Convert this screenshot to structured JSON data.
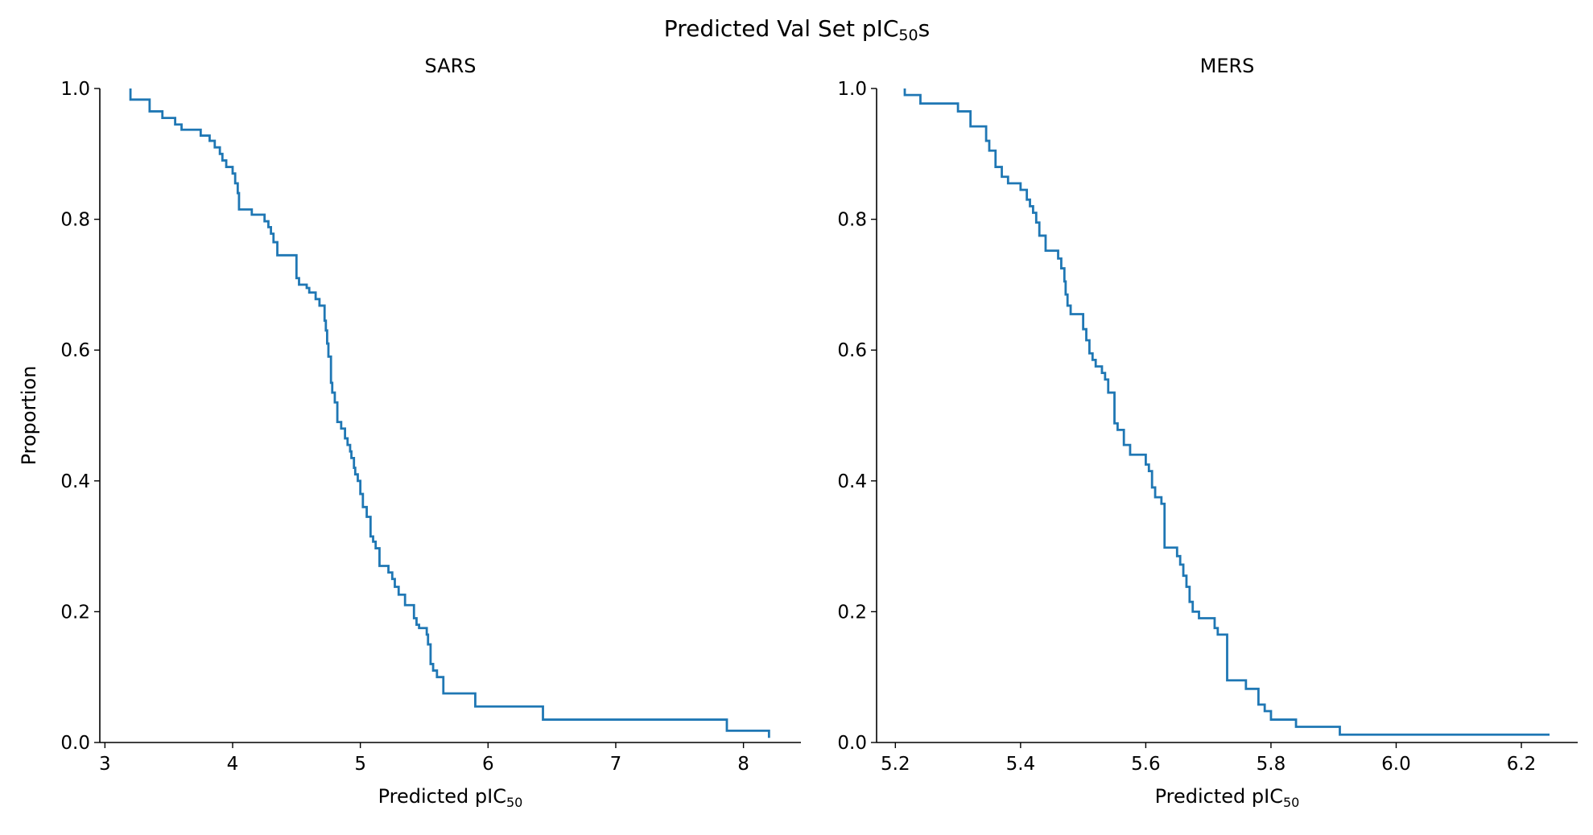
{
  "figure": {
    "suptitle_main": "Predicted Val Set pIC",
    "suptitle_sub": "50",
    "suptitle_tail": "s"
  },
  "chart_data": [
    {
      "type": "line",
      "subtype": "step",
      "title": "SARS",
      "xlabel_main": "Predicted pIC",
      "xlabel_sub": "50",
      "ylabel": "Proportion",
      "xlim": [
        2.96,
        8.45
      ],
      "ylim": [
        0,
        1.0
      ],
      "xticks": [
        3,
        4,
        5,
        6,
        7,
        8
      ],
      "xtick_labels": [
        "3",
        "4",
        "5",
        "6",
        "7",
        "8"
      ],
      "yticks": [
        0.0,
        0.2,
        0.4,
        0.6,
        0.8,
        1.0
      ],
      "ytick_labels": [
        "0.0",
        "0.2",
        "0.4",
        "0.6",
        "0.8",
        "1.0"
      ],
      "color": "#1f77b4",
      "grid": false,
      "series": [
        {
          "x": [
            3.2,
            3.2,
            3.35,
            3.45,
            3.55,
            3.6,
            3.75,
            3.82,
            3.86,
            3.9,
            3.92,
            3.95,
            4.0,
            4.02,
            4.04,
            4.05,
            4.15,
            4.25,
            4.28,
            4.3,
            4.32,
            4.35,
            4.5,
            4.52,
            4.58,
            4.6,
            4.65,
            4.68,
            4.72,
            4.73,
            4.74,
            4.75,
            4.77,
            4.78,
            4.8,
            4.82,
            4.85,
            4.88,
            4.9,
            4.92,
            4.93,
            4.95,
            4.96,
            4.98,
            5.0,
            5.02,
            5.05,
            5.08,
            5.1,
            5.12,
            5.15,
            5.22,
            5.25,
            5.27,
            5.3,
            5.35,
            5.42,
            5.44,
            5.46,
            5.52,
            5.53,
            5.55,
            5.57,
            5.6,
            5.65,
            5.9,
            6.43,
            7.87,
            8.2
          ],
          "y": [
            1.0,
            0.983,
            0.965,
            0.955,
            0.945,
            0.937,
            0.928,
            0.92,
            0.91,
            0.9,
            0.89,
            0.88,
            0.87,
            0.855,
            0.84,
            0.815,
            0.807,
            0.797,
            0.788,
            0.778,
            0.765,
            0.745,
            0.71,
            0.7,
            0.695,
            0.688,
            0.678,
            0.668,
            0.645,
            0.63,
            0.61,
            0.59,
            0.55,
            0.535,
            0.52,
            0.49,
            0.48,
            0.465,
            0.455,
            0.445,
            0.435,
            0.42,
            0.41,
            0.4,
            0.38,
            0.36,
            0.345,
            0.315,
            0.307,
            0.297,
            0.27,
            0.26,
            0.25,
            0.238,
            0.226,
            0.21,
            0.19,
            0.18,
            0.175,
            0.165,
            0.15,
            0.12,
            0.11,
            0.1,
            0.075,
            0.055,
            0.035,
            0.018,
            0.007
          ]
        }
      ]
    },
    {
      "type": "line",
      "subtype": "step",
      "title": "MERS",
      "xlabel_main": "Predicted pIC",
      "xlabel_sub": "50",
      "ylabel": "",
      "xlim": [
        5.17,
        6.29
      ],
      "ylim": [
        0,
        1.0
      ],
      "xticks": [
        5.2,
        5.4,
        5.6,
        5.8,
        6.0,
        6.2
      ],
      "xtick_labels": [
        "5.2",
        "5.4",
        "5.6",
        "5.8",
        "6.0",
        "6.2"
      ],
      "yticks": [
        0.0,
        0.2,
        0.4,
        0.6,
        0.8,
        1.0
      ],
      "ytick_labels": [
        "0.0",
        "0.2",
        "0.4",
        "0.6",
        "0.8",
        "1.0"
      ],
      "color": "#1f77b4",
      "grid": false,
      "series": [
        {
          "x": [
            5.215,
            5.215,
            5.24,
            5.3,
            5.32,
            5.345,
            5.35,
            5.36,
            5.37,
            5.38,
            5.4,
            5.41,
            5.415,
            5.42,
            5.425,
            5.43,
            5.44,
            5.46,
            5.465,
            5.47,
            5.472,
            5.475,
            5.48,
            5.5,
            5.505,
            5.51,
            5.515,
            5.52,
            5.53,
            5.535,
            5.54,
            5.55,
            5.555,
            5.565,
            5.575,
            5.6,
            5.605,
            5.61,
            5.615,
            5.625,
            5.63,
            5.65,
            5.655,
            5.66,
            5.665,
            5.67,
            5.675,
            5.685,
            5.71,
            5.715,
            5.73,
            5.76,
            5.78,
            5.79,
            5.8,
            5.84,
            5.91,
            6.245
          ],
          "y": [
            1.0,
            0.99,
            0.977,
            0.965,
            0.942,
            0.92,
            0.905,
            0.88,
            0.865,
            0.855,
            0.845,
            0.83,
            0.82,
            0.81,
            0.795,
            0.775,
            0.752,
            0.74,
            0.725,
            0.705,
            0.685,
            0.668,
            0.655,
            0.632,
            0.615,
            0.595,
            0.585,
            0.575,
            0.565,
            0.555,
            0.535,
            0.488,
            0.478,
            0.455,
            0.44,
            0.425,
            0.415,
            0.39,
            0.375,
            0.365,
            0.298,
            0.285,
            0.272,
            0.255,
            0.238,
            0.215,
            0.2,
            0.19,
            0.175,
            0.165,
            0.095,
            0.082,
            0.058,
            0.048,
            0.035,
            0.024,
            0.012,
            0.012
          ]
        }
      ]
    }
  ]
}
